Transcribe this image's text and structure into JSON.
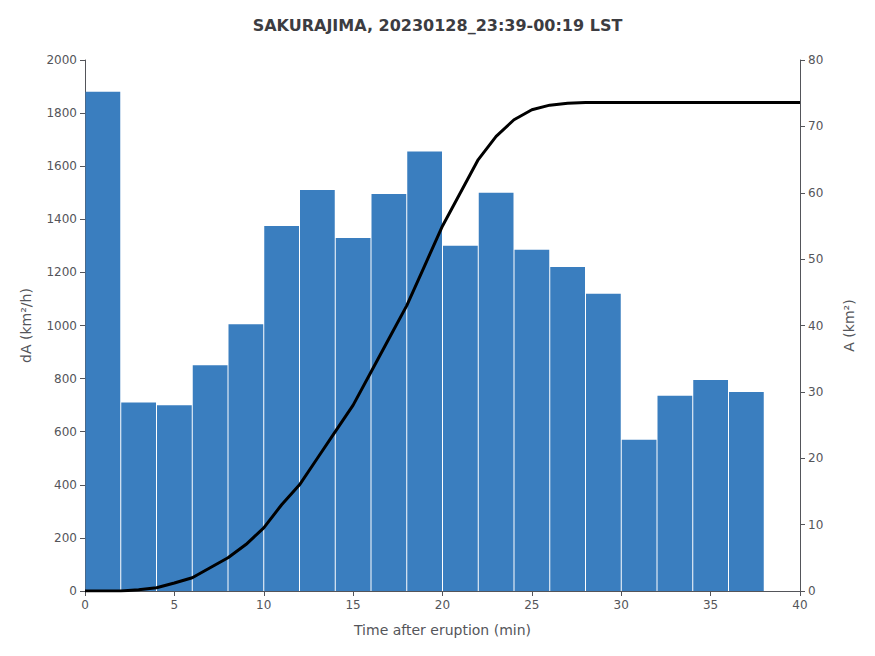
{
  "chart_data": {
    "type": "bar",
    "title": "SAKURAJIMA, 20230128_23:39-00:19 LST",
    "xlabel": "Time after eruption (min)",
    "ylabel": "dA (km²/h)",
    "y2label": "A (km²)",
    "xlim": [
      0,
      40
    ],
    "xticks": [
      0,
      5,
      10,
      15,
      20,
      25,
      30,
      35,
      40
    ],
    "ylim": [
      0,
      2000
    ],
    "yticks": [
      0,
      200,
      400,
      600,
      800,
      1000,
      1200,
      1400,
      1600,
      1800,
      2000
    ],
    "y2lim": [
      0,
      80
    ],
    "y2ticks": [
      0,
      10,
      20,
      30,
      40,
      50,
      60,
      70,
      80
    ],
    "grid": false,
    "series": [
      {
        "type": "bar",
        "color": "#3a7ebf",
        "x": [
          1,
          3,
          5,
          7,
          9,
          11,
          13,
          15,
          17,
          19,
          21,
          23,
          25,
          27,
          29,
          31,
          33,
          35,
          37,
          39
        ],
        "values": [
          1880,
          710,
          700,
          850,
          1005,
          1375,
          1510,
          1330,
          1495,
          1655,
          1300,
          1500,
          1285,
          1220,
          1120,
          570,
          735,
          795,
          750,
          0
        ]
      },
      {
        "type": "line",
        "axis": "y2",
        "color": "black",
        "x": [
          0,
          1,
          2,
          3,
          4,
          5,
          6,
          7,
          8,
          9,
          10,
          11,
          12,
          13,
          14,
          15,
          16,
          17,
          18,
          19,
          20,
          21,
          22,
          23,
          24,
          25,
          26,
          27,
          28,
          29,
          30,
          31,
          32,
          33,
          34,
          35,
          36,
          37,
          38,
          39,
          40
        ],
        "values": [
          0,
          0,
          0,
          0.2,
          0.5,
          1.2,
          2.0,
          3.5,
          5.0,
          7.0,
          9.5,
          13,
          16,
          20,
          24,
          28,
          33,
          38,
          43,
          49,
          55,
          60,
          65,
          68.5,
          71,
          72.5,
          73.2,
          73.5,
          73.6,
          73.6,
          73.6,
          73.6,
          73.6,
          73.6,
          73.6,
          73.6,
          73.6,
          73.6,
          73.6,
          73.6,
          73.6
        ]
      }
    ]
  }
}
